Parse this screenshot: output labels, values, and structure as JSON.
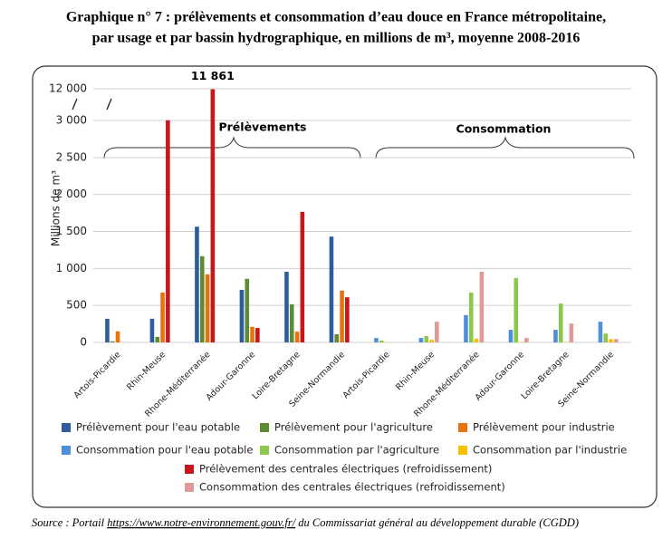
{
  "title_lines": [
    "Graphique n° 7 : prélèvements et consommation d’eau douce en France métropolitaine,",
    "par usage et par bassin hydrographique, en millions de m³, moyenne 2008-2016"
  ],
  "chart_data": {
    "type": "bar",
    "y_label": "Millions de m³",
    "annotations": [
      "Prélèvements",
      "Consommation"
    ],
    "categories": [
      "Artois-Picardie",
      "Rhin-Meuse",
      "Rhone-Méditerranée",
      "Adour-Garonne",
      "Loire-Bretagne",
      "Seine-Normandie",
      "Artois-Picardie",
      "Rhin-Meuse",
      "Rhone-Méditerranée",
      "Adour-Garonne",
      "Loire-Bretagne",
      "Seine-Normandie"
    ],
    "series": [
      {
        "name": "Prélèvement pour l'eau potable",
        "color": "#2d5d9b",
        "values": [
          320,
          320,
          1565,
          710,
          955,
          1430,
          null,
          null,
          null,
          null,
          null,
          null
        ]
      },
      {
        "name": "Prélèvement pour l'agriculture",
        "color": "#5f8b34",
        "values": [
          15,
          75,
          1165,
          860,
          515,
          110,
          null,
          null,
          null,
          null,
          null,
          null
        ]
      },
      {
        "name": "Prélèvement pour industrie",
        "color": "#e8730c",
        "values": [
          150,
          675,
          920,
          210,
          145,
          700,
          null,
          null,
          null,
          null,
          null,
          null
        ]
      },
      {
        "name": "Consommation pour l'eau potable",
        "color": "#4f8fd6",
        "values": [
          null,
          null,
          null,
          null,
          null,
          null,
          60,
          60,
          370,
          170,
          170,
          280
        ]
      },
      {
        "name": "Consommation par l'agriculture",
        "color": "#8cc84b",
        "values": [
          null,
          null,
          null,
          null,
          null,
          null,
          25,
          85,
          675,
          870,
          525,
          120
        ]
      },
      {
        "name": "Consommation par l'industrie",
        "color": "#f5c000",
        "values": [
          null,
          null,
          null,
          null,
          null,
          null,
          5,
          35,
          50,
          5,
          5,
          45
        ]
      },
      {
        "name": "Prélèvement des centrales électriques (refroidissement)",
        "color": "#c8161d",
        "values": [
          0,
          3060,
          11861,
          195,
          1765,
          610,
          null,
          null,
          null,
          null,
          null,
          null
        ],
        "value_labels": [
          null,
          null,
          "11 861",
          null,
          null,
          null,
          null,
          null,
          null,
          null,
          null,
          null
        ]
      },
      {
        "name": "Consommation des centrales électriques (refroidissement)",
        "color": "#e09a9a",
        "values": [
          null,
          null,
          null,
          null,
          null,
          null,
          0,
          280,
          955,
          60,
          255,
          45
        ]
      }
    ],
    "ylim": [
      0,
      12000
    ],
    "yticks": [
      0,
      500,
      {
        "value": 1000,
        "label": "1 000"
      },
      {
        "value": 1500,
        "label": "1 500"
      },
      {
        "value": 2000,
        "label": "2 000"
      },
      {
        "value": 2500,
        "label": "2 500"
      },
      {
        "value": 3000,
        "label": "3 000"
      },
      {
        "value": 12000,
        "label": "12 000"
      }
    ],
    "y_axis_break": true,
    "grid": true
  },
  "source": {
    "prefix": "Source : Portail ",
    "link": "https://www.notre-environnement.gouv.fr/",
    "suffix": " du Commissariat général au développement durable (CGDD)"
  }
}
